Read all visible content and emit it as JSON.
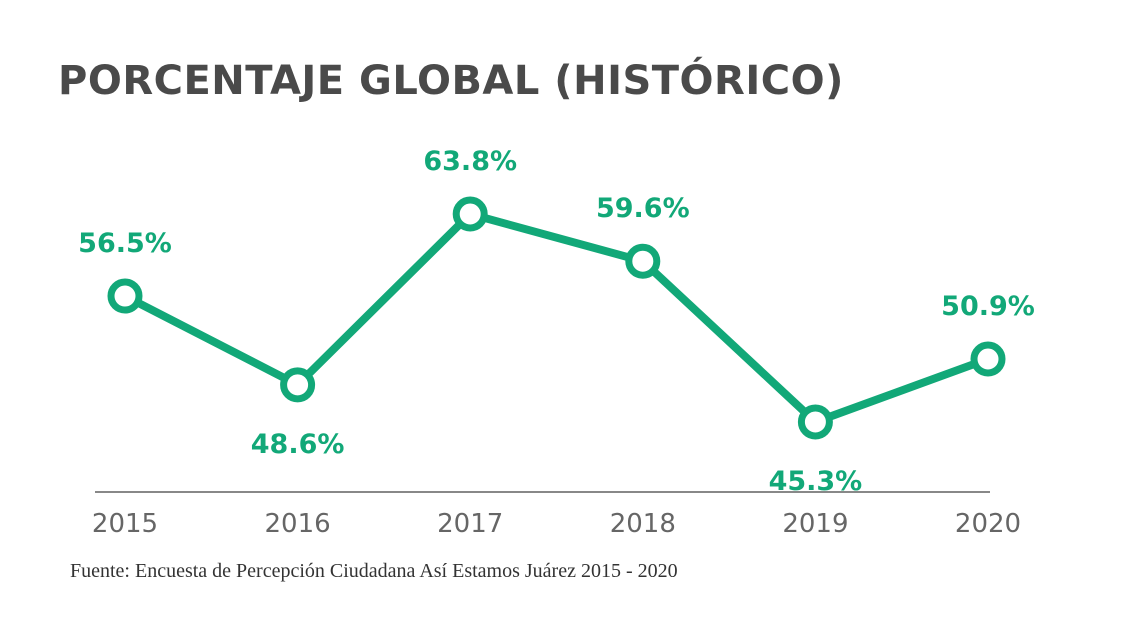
{
  "chart_data": {
    "type": "line",
    "title": "PORCENTAJE GLOBAL (HISTÓRICO)",
    "xlabel": "",
    "ylabel": "",
    "categories": [
      "2015",
      "2016",
      "2017",
      "2018",
      "2019",
      "2020"
    ],
    "values": [
      56.5,
      48.6,
      63.8,
      59.6,
      45.3,
      50.9
    ],
    "data_labels": [
      "56.5%",
      "48.6%",
      "63.8%",
      "59.6%",
      "45.3%",
      "50.9%"
    ],
    "label_positions": [
      "above",
      "below",
      "above",
      "above",
      "below",
      "above"
    ],
    "grid": false,
    "legend": "none",
    "source": "Fuente: Encuesta de Percepción Ciudadana Así Estamos Juárez 2015 - 2020"
  },
  "colors": {
    "series": "#12a878",
    "title": "#4a4a4a",
    "axis": "#888888"
  }
}
